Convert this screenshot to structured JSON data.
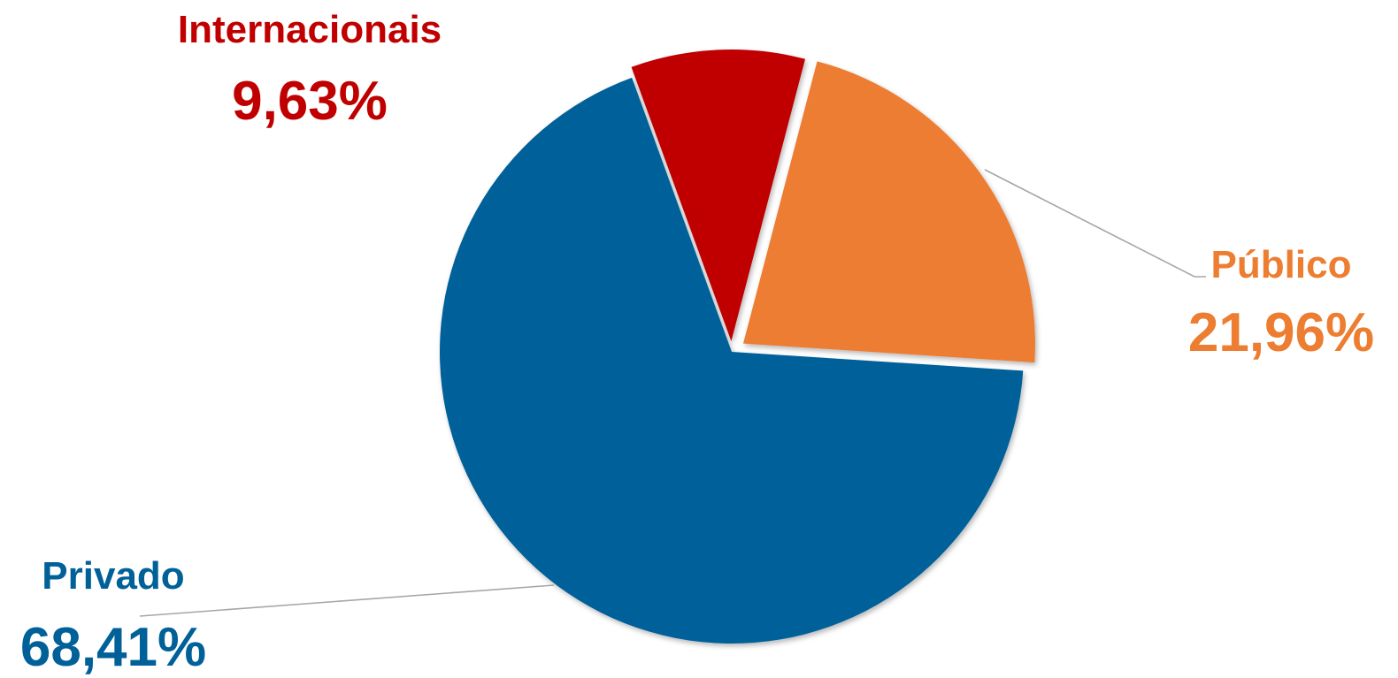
{
  "chart_data": {
    "type": "pie",
    "slices": [
      {
        "label": "Internacionais",
        "value_text": "9,63%",
        "value": 9.63,
        "color": "#c00000"
      },
      {
        "label": "Público",
        "value_text": "21,96%",
        "value": 21.96,
        "color": "#ed7d31"
      },
      {
        "label": "Privado",
        "value_text": "68,41%",
        "value": 68.41,
        "color": "#006199"
      }
    ],
    "legend": "none",
    "data_labels": "outside-with-leader-lines",
    "exploded_slices": [
      "Internacionais",
      "Público"
    ]
  }
}
